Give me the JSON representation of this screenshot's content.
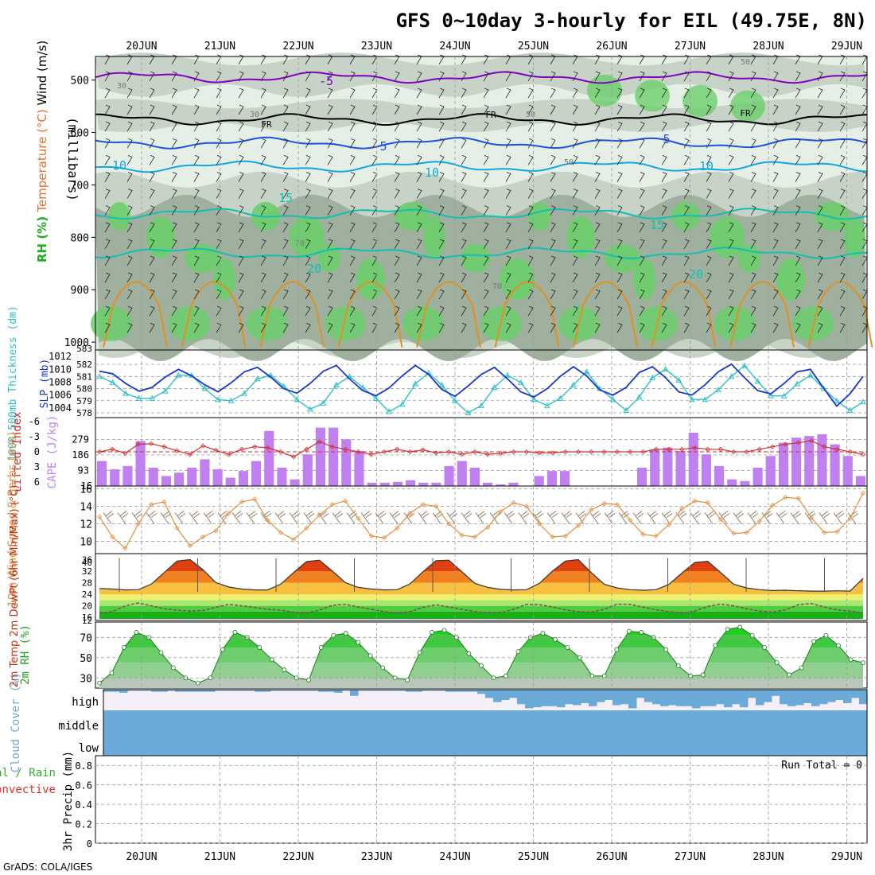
{
  "header": {
    "title": "GFS 0~10day 3-hourly for EIL (49.75E, 8N)",
    "credit": "GrADS: COLA/IGES"
  },
  "dates": [
    "20JUN",
    "21JUN",
    "22JUN",
    "23JUN",
    "24JUN",
    "25JUN",
    "26JUN",
    "27JUN",
    "28JUN",
    "29JUN"
  ],
  "colors": {
    "rh_light": "#e6efe6",
    "rh_mid": "#c6d3c6",
    "rh_dark": "#9fb09f",
    "rh_green": "#6ccf6c",
    "temp_purple": "#8000c0",
    "temp_blue": "#2050e0",
    "temp_cyan": "#10a8e0",
    "temp_teal": "#10c0b0",
    "temp_orange": "#e09020",
    "thickness": "#30c0c8",
    "slp": "#1838c8",
    "cape": "#c080f0",
    "lifted": "#d03030",
    "wind10m": "#e09040",
    "cloud": "#6aaad8",
    "rh2m": "#30c030"
  },
  "chart_data": [
    {
      "type": "heatmap",
      "name": "upper_air_cross_section",
      "ylabel": "(millibars)",
      "yticks": [
        500,
        600,
        700,
        800,
        900,
        1000
      ],
      "ylim": [
        455,
        1015
      ],
      "legend_labels": {
        "rh": "RH (%)",
        "temperature": "Temperature (°C)",
        "wind": "Wind (m/s)"
      },
      "contour_labels": [
        "-5",
        "FR",
        "FR",
        "FR",
        "5",
        "5",
        "10",
        "10",
        "10",
        "15",
        "15",
        "20",
        "20",
        "30",
        "30",
        "50",
        "50",
        "50",
        "70",
        "70"
      ],
      "isotherms_hpa": [
        {
          "label": "-5",
          "level": 495
        },
        {
          "label": "FR",
          "level": 575
        },
        {
          "label": "5",
          "level": 620
        },
        {
          "label": "10",
          "level": 665
        },
        {
          "label": "15",
          "level": 755
        },
        {
          "label": "20",
          "level": 830
        }
      ]
    },
    {
      "type": "line",
      "name": "thickness_slp",
      "ylabel_left": "1000-500mb Thickness (dm)",
      "ylabel_right": "SLP (mb)",
      "left_ticks": [
        578,
        579,
        580,
        581,
        582
      ],
      "left_top_label": "583",
      "right_ticks": [
        1004,
        1006,
        1008,
        1010,
        1012
      ],
      "thickness": [
        581.0,
        580.5,
        579.6,
        579.2,
        579.2,
        579.8,
        581.1,
        581.1,
        580.0,
        579.1,
        579.0,
        579.6,
        580.8,
        581.1,
        580.2,
        579.1,
        578.3,
        578.8,
        580.3,
        581.0,
        580.1,
        579.2,
        578.1,
        578.7,
        580.4,
        581.3,
        580.3,
        579.0,
        578.0,
        578.6,
        580.1,
        581.1,
        580.5,
        579.1,
        578.6,
        579.2,
        580.3,
        581.4,
        580.0,
        579.1,
        578.2,
        579.3,
        580.9,
        581.6,
        580.7,
        579.1,
        579.1,
        579.9,
        581.0,
        581.9,
        580.6,
        579.4,
        579.4,
        580.4,
        581.1,
        580.0,
        579.0,
        578.2,
        578.9
      ],
      "slp": [
        1009.7,
        1009.3,
        1007.8,
        1006.6,
        1007.2,
        1008.8,
        1010.0,
        1009.0,
        1007.6,
        1006.5,
        1007.9,
        1009.6,
        1010.3,
        1008.8,
        1007.0,
        1006.3,
        1007.8,
        1009.7,
        1010.6,
        1008.5,
        1006.7,
        1005.9,
        1007.1,
        1009.0,
        1010.6,
        1009.2,
        1006.9,
        1005.8,
        1007.4,
        1009.2,
        1010.3,
        1008.5,
        1006.5,
        1005.7,
        1007.0,
        1008.9,
        1010.4,
        1009.0,
        1006.8,
        1006.0,
        1007.2,
        1009.5,
        1010.4,
        1008.7,
        1006.5,
        1006.0,
        1007.6,
        1009.6,
        1010.8,
        1008.7,
        1006.7,
        1006.2,
        1007.8,
        1009.6,
        1010.0,
        1007.1,
        1004.3,
        1006.2,
        1008.9
      ]
    },
    {
      "type": "bar",
      "name": "cape_lifted_index",
      "ylabel_left": "Lifted Index",
      "ylabel_right": "CAPE (J/kg)",
      "left_ticks": [
        -6,
        -3,
        0,
        3,
        6
      ],
      "right_ticks": [
        93,
        186,
        279
      ],
      "cape": [
        150,
        100,
        120,
        270,
        110,
        60,
        80,
        110,
        160,
        100,
        50,
        90,
        150,
        330,
        110,
        40,
        190,
        350,
        350,
        280,
        210,
        20,
        20,
        25,
        35,
        20,
        20,
        120,
        150,
        110,
        20,
        10,
        20,
        0,
        60,
        90,
        90,
        0,
        0,
        0,
        0,
        0,
        110,
        220,
        230,
        210,
        320,
        190,
        120,
        40,
        30,
        110,
        180,
        260,
        290,
        300,
        310,
        250,
        180,
        60
      ],
      "lifted_index": [
        0,
        -0.5,
        0.3,
        -1.5,
        -1.6,
        -1.0,
        -0.2,
        0.5,
        -1.2,
        -0.3,
        0.5,
        -0.5,
        -1.0,
        -0.8,
        0.0,
        1.0,
        -0.5,
        -2.0,
        -1.0,
        -0.5,
        0.0,
        0.5,
        0.0,
        -0.5,
        0.0,
        -0.4,
        0.2,
        0.0,
        0.5,
        0.0,
        0.5,
        0.3,
        0.0,
        0.0,
        0.2,
        0.2,
        0.0,
        0.0,
        0.0,
        0.0,
        0.0,
        0.0,
        0.0,
        -0.5,
        -0.5,
        -0.5,
        -0.8,
        -0.5,
        -0.5,
        0.0,
        0.0,
        -0.5,
        -1.0,
        -1.5,
        -1.8,
        -2.2,
        -1.0,
        -0.5,
        0.0,
        0.5
      ]
    },
    {
      "type": "line",
      "name": "wind_10m",
      "ylabel": "10m Wind Speed & Barbs (m/s)",
      "yticks": [
        10,
        12,
        14,
        16
      ],
      "speed": [
        12.8,
        10.5,
        9.2,
        12.0,
        14.2,
        14.5,
        11.5,
        9.5,
        10.5,
        11.2,
        13.2,
        14.5,
        14.8,
        12.4,
        11.0,
        10.2,
        11.5,
        13.0,
        14.2,
        14.6,
        12.6,
        10.6,
        10.4,
        11.5,
        13.2,
        14.2,
        14.0,
        12.0,
        10.7,
        10.5,
        11.6,
        13.4,
        14.4,
        14.0,
        12.0,
        10.5,
        10.6,
        11.8,
        13.6,
        14.3,
        14.2,
        12.4,
        10.8,
        10.6,
        11.9,
        13.7,
        14.6,
        14.4,
        12.5,
        10.9,
        11.0,
        12.3,
        14.1,
        15.0,
        14.9,
        12.7,
        11.0,
        11.1,
        12.6,
        15.5
      ]
    },
    {
      "type": "area",
      "name": "temp_2m",
      "ylabel": "2m Temp 2m DewPt (6hr Min/Max) (°C)",
      "yticks": [
        16,
        20,
        24,
        28,
        32,
        36
      ],
      "ytick_labels": [
        "16",
        "20",
        "24",
        "28",
        "32",
        "36"
      ],
      "temp": [
        26,
        25.8,
        25.5,
        25.6,
        27.5,
        31.5,
        35.5,
        36,
        32.5,
        28,
        26.5,
        25.8,
        25.5,
        25.5,
        27.5,
        31.5,
        35.3,
        35.8,
        32,
        28,
        26.4,
        25.8,
        25.5,
        25.6,
        27.6,
        31.8,
        35.6,
        35.8,
        31.8,
        27.8,
        26.4,
        25.7,
        25.5,
        25.6,
        27.8,
        32,
        35.5,
        36,
        31.5,
        27.5,
        26.2,
        25.6,
        25.4,
        25.6,
        27.4,
        31.3,
        35,
        35.4,
        31.5,
        27.5,
        26.2,
        25.6,
        25.3,
        25.4,
        25.2,
        25.1,
        25.1,
        25.2,
        25.1,
        29.5
      ],
      "dewpt": [
        17.5,
        18.0,
        20.0,
        21.0,
        20.0,
        19.0,
        18.5,
        18.2,
        18.4,
        19.5,
        20.5,
        20.0,
        19.4,
        18.8,
        18.5,
        17.8,
        17.5,
        18.5,
        20.2,
        20.5,
        19.6,
        18.8,
        18.0,
        17.5,
        18.0,
        19.5,
        20.4,
        19.6,
        18.8,
        18.0,
        17.6,
        17.6,
        18.8,
        20.5,
        20.4,
        19.6,
        18.6,
        18.0,
        17.8,
        18.8,
        20.6,
        20.5,
        19.6,
        18.6,
        18.0,
        17.5,
        18.2,
        19.8,
        20.6,
        20.0,
        19.0,
        18.2,
        17.8,
        18.6,
        20.4,
        20.8,
        19.6,
        18.6,
        18.2,
        17.6
      ]
    },
    {
      "type": "area",
      "name": "rh_2m",
      "ylabel": "2m RH (%)",
      "yticks": [
        30,
        50,
        70
      ],
      "values": [
        25,
        35,
        60,
        75,
        70,
        55,
        40,
        30,
        25,
        30,
        58,
        75,
        70,
        60,
        48,
        38,
        30,
        28,
        60,
        72,
        74,
        65,
        52,
        40,
        30,
        28,
        55,
        75,
        77,
        70,
        54,
        42,
        30,
        32,
        56,
        70,
        74,
        68,
        60,
        50,
        32,
        32,
        58,
        76,
        75,
        70,
        58,
        42,
        32,
        33,
        62,
        78,
        80,
        72,
        60,
        45,
        33,
        40,
        66,
        72,
        62,
        48,
        45
      ]
    },
    {
      "type": "heatmap",
      "name": "cloud_cover",
      "ylabel": "Cloud Cover (%)",
      "levels": [
        "high",
        "middle",
        "low"
      ],
      "high_cover": [
        10,
        10,
        15,
        5,
        5,
        5,
        10,
        10,
        5,
        10,
        10,
        10,
        10,
        10,
        5,
        5,
        5,
        5,
        5,
        10,
        10,
        5,
        5,
        5,
        5,
        5,
        5,
        10,
        10,
        15,
        5,
        30,
        5,
        5,
        5,
        5,
        5,
        5,
        10,
        10,
        5,
        5,
        5,
        10,
        10,
        10,
        10,
        20,
        40,
        60,
        50,
        40,
        70,
        90,
        85,
        80,
        80,
        85,
        70,
        75,
        65,
        80,
        60,
        50,
        75,
        70,
        90,
        40,
        60,
        70,
        80,
        75,
        80,
        80,
        90,
        80,
        80,
        70,
        85,
        70,
        85,
        40,
        75,
        60,
        30,
        70,
        80,
        75,
        65,
        80,
        70,
        60,
        50,
        65,
        40,
        70
      ]
    },
    {
      "type": "bar",
      "name": "precip_3hr",
      "ylabel": "3hr Precip (mm)",
      "legend_total_rain": "Total / Rain",
      "legend_convective": "Convective",
      "run_total": "Run Total = 0",
      "yticks": [
        0,
        0.2,
        0.4,
        0.6,
        0.8
      ],
      "ylim": [
        0,
        0.9
      ],
      "values": []
    }
  ]
}
